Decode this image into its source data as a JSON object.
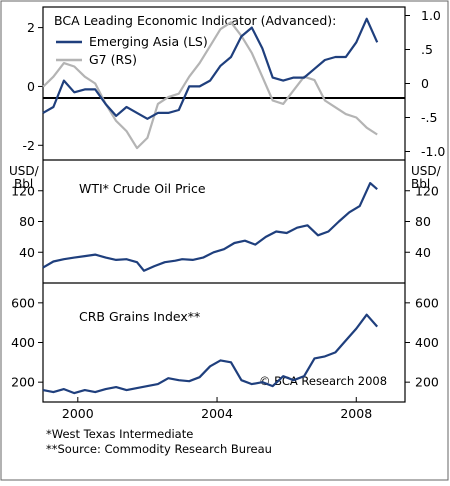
{
  "chart_data": [
    {
      "type": "line",
      "title": "BCA Leading Economic Indicator (Advanced):",
      "left_axis": {
        "ticks": [
          2,
          0,
          -2
        ],
        "ylim": [
          -2.5,
          2.7
        ]
      },
      "right_axis": {
        "ticks": [
          1.0,
          0.5,
          0,
          -0.5,
          -1.0
        ],
        "tick_labels": [
          "1.0",
          ".5",
          "0",
          "-.5",
          "-1.0"
        ],
        "ylim": [
          -1.125,
          1.125
        ]
      },
      "zero_line": true,
      "legend_position": "top-left",
      "series": [
        {
          "name": "Emerging Asia (LS)",
          "axis": "left",
          "color": "#1f3f7d",
          "x": [
            1999.0,
            1999.3,
            1999.6,
            1999.9,
            2000.2,
            2000.5,
            2000.8,
            2001.1,
            2001.4,
            2001.7,
            2002.0,
            2002.3,
            2002.6,
            2002.9,
            2003.2,
            2003.5,
            2003.8,
            2004.1,
            2004.4,
            2004.7,
            2005.0,
            2005.3,
            2005.6,
            2005.9,
            2006.2,
            2006.5,
            2006.8,
            2007.1,
            2007.4,
            2007.7,
            2008.0,
            2008.3,
            2008.6
          ],
          "y": [
            -0.9,
            -0.7,
            0.2,
            -0.2,
            -0.1,
            -0.1,
            -0.6,
            -1.0,
            -0.7,
            -0.9,
            -1.1,
            -0.9,
            -0.9,
            -0.8,
            0.0,
            0.0,
            0.2,
            0.7,
            1.0,
            1.7,
            2.0,
            1.3,
            0.3,
            0.2,
            0.3,
            0.3,
            0.6,
            0.9,
            1.0,
            1.0,
            1.5,
            2.3,
            1.5
          ]
        },
        {
          "name": "G7 (RS)",
          "axis": "right",
          "color": "#b4b4b4",
          "x": [
            1999.0,
            1999.3,
            1999.6,
            1999.9,
            2000.2,
            2000.5,
            2000.8,
            2001.1,
            2001.4,
            2001.7,
            2002.0,
            2002.3,
            2002.6,
            2002.9,
            2003.2,
            2003.5,
            2003.8,
            2004.1,
            2004.4,
            2004.7,
            2005.0,
            2005.3,
            2005.6,
            2005.9,
            2006.2,
            2006.5,
            2006.8,
            2007.1,
            2007.4,
            2007.7,
            2008.0,
            2008.3,
            2008.6
          ],
          "y": [
            -0.05,
            0.1,
            0.3,
            0.25,
            0.1,
            0.0,
            -0.3,
            -0.55,
            -0.7,
            -0.95,
            -0.8,
            -0.3,
            -0.2,
            -0.15,
            0.1,
            0.3,
            0.55,
            0.8,
            0.9,
            0.7,
            0.45,
            0.1,
            -0.25,
            -0.3,
            -0.1,
            0.1,
            0.05,
            -0.25,
            -0.35,
            -0.45,
            -0.5,
            -0.65,
            -0.75
          ]
        }
      ]
    },
    {
      "type": "line",
      "title": "WTI* Crude Oil Price",
      "ylabel": "USD/ Bbl",
      "ylim": [
        0,
        160
      ],
      "ticks": [
        120,
        80,
        40
      ],
      "series": [
        {
          "name": "",
          "color": "#1f3f7d",
          "x": [
            1999.0,
            1999.3,
            1999.6,
            1999.9,
            2000.2,
            2000.5,
            2000.8,
            2001.1,
            2001.4,
            2001.7,
            2001.9,
            2002.2,
            2002.5,
            2002.8,
            2003.0,
            2003.3,
            2003.6,
            2003.9,
            2004.2,
            2004.5,
            2004.8,
            2005.1,
            2005.4,
            2005.7,
            2006.0,
            2006.3,
            2006.6,
            2006.9,
            2007.2,
            2007.5,
            2007.8,
            2008.1,
            2008.4,
            2008.6
          ],
          "y": [
            20,
            28,
            31,
            33,
            35,
            37,
            33,
            30,
            31,
            27,
            16,
            22,
            27,
            29,
            31,
            30,
            33,
            40,
            44,
            52,
            55,
            50,
            60,
            67,
            65,
            72,
            75,
            62,
            67,
            80,
            92,
            100,
            130,
            122
          ]
        }
      ]
    },
    {
      "type": "line",
      "title": "CRB Grains Index**",
      "ylim": [
        100,
        700
      ],
      "ticks": [
        600,
        400,
        200
      ],
      "annotation": "© BCA Research 2008",
      "series": [
        {
          "name": "",
          "color": "#1f3f7d",
          "x": [
            1999.0,
            1999.3,
            1999.6,
            1999.9,
            2000.2,
            2000.5,
            2000.8,
            2001.1,
            2001.4,
            2001.7,
            2002.0,
            2002.3,
            2002.6,
            2002.9,
            2003.2,
            2003.5,
            2003.8,
            2004.1,
            2004.4,
            2004.7,
            2005.0,
            2005.3,
            2005.6,
            2005.9,
            2006.2,
            2006.5,
            2006.8,
            2007.1,
            2007.4,
            2007.7,
            2008.0,
            2008.3,
            2008.6
          ],
          "y": [
            160,
            150,
            165,
            145,
            160,
            150,
            165,
            175,
            160,
            170,
            180,
            190,
            220,
            210,
            205,
            225,
            280,
            310,
            300,
            210,
            190,
            200,
            180,
            230,
            210,
            230,
            320,
            330,
            350,
            410,
            470,
            540,
            480
          ]
        }
      ]
    }
  ],
  "x_axis": {
    "xlim": [
      1999.0,
      2009.4
    ],
    "ticks": [
      2000,
      2004,
      2008
    ],
    "tick_labels": [
      "2000",
      "2004",
      "2008"
    ]
  },
  "footnotes": [
    "*West Texas Intermediate",
    "**Source: Commodity Research Bureau"
  ],
  "colors": {
    "asia": "#1f3f7d",
    "g7": "#b4b4b4"
  }
}
